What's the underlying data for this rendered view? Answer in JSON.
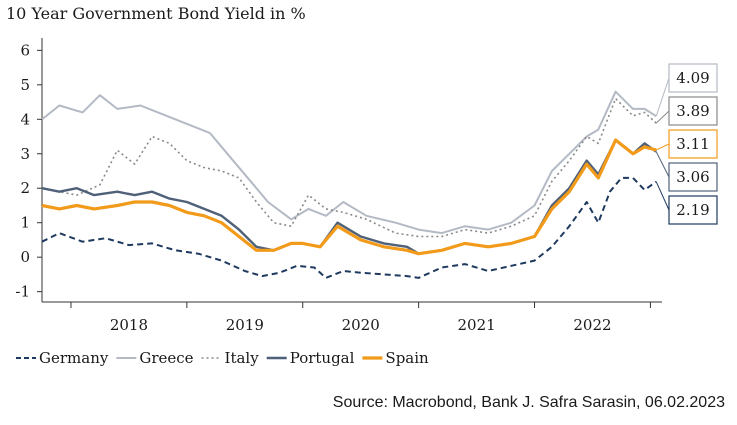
{
  "chart_data": {
    "type": "line",
    "title": "10 Year Government Bond Yield in %",
    "xlabel": "",
    "ylabel": "",
    "ylim": [
      -1.3,
      6.3
    ],
    "yticks": [
      6,
      5,
      4,
      3,
      2,
      1,
      0,
      -1
    ],
    "xlim": [
      2017.75,
      2023.1
    ],
    "xticks": [
      {
        "label": "2018",
        "x": 2018.5
      },
      {
        "label": "2019",
        "x": 2019.5
      },
      {
        "label": "2020",
        "x": 2020.5
      },
      {
        "label": "2021",
        "x": 2021.5
      },
      {
        "label": "2022",
        "x": 2022.5
      }
    ],
    "grid": false,
    "legend_position": "bottom-left",
    "series": [
      {
        "name": "Germany",
        "color": "#1f3a5f",
        "style": "dashed",
        "end_label": "2.19",
        "x": [
          2017.75,
          2017.9,
          2018.1,
          2018.3,
          2018.5,
          2018.7,
          2018.9,
          2019.1,
          2019.3,
          2019.5,
          2019.65,
          2019.8,
          2019.95,
          2020.1,
          2020.2,
          2020.35,
          2020.5,
          2020.7,
          2020.9,
          2021.0,
          2021.2,
          2021.4,
          2021.6,
          2021.8,
          2022.0,
          2022.15,
          2022.3,
          2022.45,
          2022.55,
          2022.65,
          2022.75,
          2022.85,
          2022.95,
          2023.05
        ],
        "values": [
          0.45,
          0.7,
          0.45,
          0.55,
          0.35,
          0.4,
          0.2,
          0.1,
          -0.1,
          -0.4,
          -0.55,
          -0.45,
          -0.25,
          -0.3,
          -0.6,
          -0.4,
          -0.45,
          -0.5,
          -0.55,
          -0.6,
          -0.3,
          -0.2,
          -0.4,
          -0.25,
          -0.1,
          0.3,
          0.9,
          1.6,
          1.0,
          1.9,
          2.3,
          2.3,
          1.95,
          2.19
        ]
      },
      {
        "name": "Greece",
        "color": "#b4bac4",
        "style": "solid",
        "end_label": "4.09",
        "x": [
          2017.75,
          2017.9,
          2018.1,
          2018.25,
          2018.4,
          2018.6,
          2018.75,
          2018.9,
          2019.05,
          2019.2,
          2019.4,
          2019.55,
          2019.7,
          2019.82,
          2019.9,
          2020.05,
          2020.2,
          2020.35,
          2020.55,
          2020.8,
          2021.0,
          2021.2,
          2021.4,
          2021.6,
          2021.8,
          2022.0,
          2022.15,
          2022.3,
          2022.45,
          2022.55,
          2022.7,
          2022.85,
          2022.95,
          2023.05
        ],
        "values": [
          4.0,
          4.4,
          4.2,
          4.7,
          4.3,
          4.4,
          4.2,
          4.0,
          3.8,
          3.6,
          2.8,
          2.2,
          1.6,
          1.3,
          1.1,
          1.4,
          1.2,
          1.6,
          1.2,
          1.0,
          0.8,
          0.7,
          0.9,
          0.8,
          1.0,
          1.5,
          2.5,
          3.0,
          3.5,
          3.7,
          4.8,
          4.3,
          4.3,
          4.09
        ]
      },
      {
        "name": "Italy",
        "color": "#8a8a8a",
        "style": "dotted",
        "end_label": "3.89",
        "x": [
          2017.75,
          2017.9,
          2018.05,
          2018.25,
          2018.4,
          2018.55,
          2018.7,
          2018.85,
          2019.0,
          2019.15,
          2019.3,
          2019.45,
          2019.6,
          2019.75,
          2019.9,
          2020.05,
          2020.2,
          2020.35,
          2020.55,
          2020.8,
          2021.0,
          2021.2,
          2021.4,
          2021.6,
          2021.8,
          2022.0,
          2022.15,
          2022.3,
          2022.45,
          2022.55,
          2022.7,
          2022.85,
          2022.95,
          2023.05
        ],
        "values": [
          2.0,
          1.9,
          1.8,
          2.1,
          3.1,
          2.7,
          3.5,
          3.3,
          2.8,
          2.6,
          2.5,
          2.3,
          1.6,
          1.0,
          0.9,
          1.8,
          1.4,
          1.3,
          1.1,
          0.7,
          0.6,
          0.6,
          0.8,
          0.7,
          0.9,
          1.2,
          2.2,
          2.8,
          3.5,
          3.3,
          4.6,
          4.1,
          4.2,
          3.89
        ]
      },
      {
        "name": "Portugal",
        "color": "#4f6079",
        "style": "solid",
        "end_label": "3.06",
        "x": [
          2017.75,
          2017.9,
          2018.05,
          2018.2,
          2018.4,
          2018.55,
          2018.7,
          2018.85,
          2019.0,
          2019.15,
          2019.3,
          2019.45,
          2019.6,
          2019.75,
          2019.9,
          2020.0,
          2020.15,
          2020.3,
          2020.5,
          2020.7,
          2020.9,
          2021.0,
          2021.2,
          2021.4,
          2021.6,
          2021.8,
          2022.0,
          2022.15,
          2022.3,
          2022.45,
          2022.55,
          2022.7,
          2022.85,
          2022.95,
          2023.05
        ],
        "values": [
          2.0,
          1.9,
          2.0,
          1.8,
          1.9,
          1.8,
          1.9,
          1.7,
          1.6,
          1.4,
          1.2,
          0.8,
          0.3,
          0.2,
          0.4,
          0.4,
          0.3,
          1.0,
          0.6,
          0.4,
          0.3,
          0.1,
          0.2,
          0.4,
          0.3,
          0.4,
          0.6,
          1.5,
          2.0,
          2.8,
          2.4,
          3.4,
          3.0,
          3.3,
          3.06
        ]
      },
      {
        "name": "Spain",
        "color": "#f29a1a",
        "style": "solid",
        "end_label": "3.11",
        "x": [
          2017.75,
          2017.9,
          2018.05,
          2018.2,
          2018.4,
          2018.55,
          2018.7,
          2018.85,
          2019.0,
          2019.15,
          2019.3,
          2019.45,
          2019.6,
          2019.75,
          2019.9,
          2020.0,
          2020.15,
          2020.3,
          2020.5,
          2020.7,
          2020.9,
          2021.0,
          2021.2,
          2021.4,
          2021.6,
          2021.8,
          2022.0,
          2022.15,
          2022.3,
          2022.45,
          2022.55,
          2022.7,
          2022.85,
          2022.95,
          2023.05
        ],
        "values": [
          1.5,
          1.4,
          1.5,
          1.4,
          1.5,
          1.6,
          1.6,
          1.5,
          1.3,
          1.2,
          1.0,
          0.6,
          0.2,
          0.2,
          0.4,
          0.4,
          0.3,
          0.9,
          0.5,
          0.3,
          0.2,
          0.1,
          0.2,
          0.4,
          0.3,
          0.4,
          0.6,
          1.4,
          1.9,
          2.7,
          2.3,
          3.4,
          3.0,
          3.2,
          3.11
        ]
      }
    ]
  },
  "source": "Source: Macrobond, Bank J. Safra Sarasin, 06.02.2023"
}
